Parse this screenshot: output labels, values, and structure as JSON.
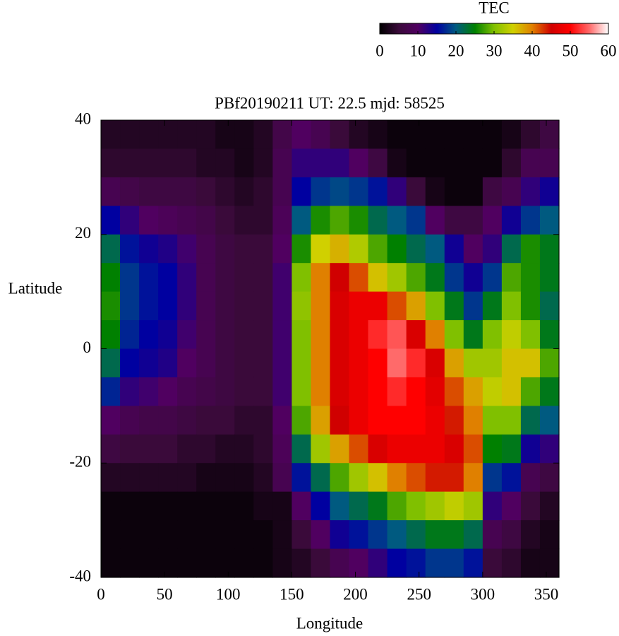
{
  "chart_data": {
    "type": "heatmap",
    "title": "PBf20190211  UT: 22.5  mjd: 58525",
    "xlabel": "Longitude",
    "ylabel": "Latitude",
    "xlim": [
      0,
      360
    ],
    "ylim": [
      -40,
      40
    ],
    "xticks": [
      0,
      50,
      100,
      150,
      200,
      250,
      300,
      350
    ],
    "yticks": [
      -40,
      -20,
      0,
      20,
      40
    ],
    "x": [
      7.5,
      22.5,
      37.5,
      52.5,
      67.5,
      82.5,
      97.5,
      112.5,
      127.5,
      142.5,
      157.5,
      172.5,
      187.5,
      202.5,
      217.5,
      232.5,
      247.5,
      262.5,
      277.5,
      292.5,
      307.5,
      322.5,
      337.5,
      352.5
    ],
    "y": [
      37.5,
      32.5,
      27.5,
      22.5,
      17.5,
      12.5,
      7.5,
      2.5,
      -2.5,
      -7.5,
      -12.5,
      -17.5,
      -22.5,
      -27.5,
      -32.5,
      -37.5
    ],
    "values": [
      [
        3,
        3,
        3,
        3,
        3,
        3,
        2,
        2,
        3,
        7,
        10,
        8,
        5,
        3,
        2,
        1,
        1,
        1,
        1,
        1,
        1,
        2,
        4,
        6
      ],
      [
        4,
        4,
        4,
        4,
        4,
        3,
        3,
        2,
        3,
        8,
        12,
        12,
        12,
        10,
        6,
        2,
        1,
        1,
        1,
        1,
        1,
        4,
        8,
        8
      ],
      [
        8,
        7,
        6,
        6,
        6,
        5,
        4,
        3,
        4,
        8,
        15,
        18,
        19,
        18,
        16,
        12,
        5,
        2,
        1,
        1,
        6,
        8,
        12,
        14
      ],
      [
        15,
        12,
        10,
        9,
        8,
        7,
        5,
        4,
        4,
        9,
        20,
        26,
        28,
        26,
        22,
        20,
        18,
        10,
        6,
        6,
        10,
        14,
        18,
        20
      ],
      [
        22,
        16,
        14,
        13,
        11,
        8,
        6,
        5,
        5,
        10,
        26,
        35,
        37,
        33,
        28,
        25,
        22,
        20,
        14,
        10,
        12,
        22,
        26,
        24
      ],
      [
        25,
        18,
        16,
        15,
        12,
        8,
        6,
        5,
        5,
        11,
        30,
        40,
        45,
        42,
        36,
        32,
        28,
        24,
        18,
        14,
        18,
        28,
        26,
        24
      ],
      [
        26,
        18,
        16,
        15,
        12,
        8,
        6,
        5,
        5,
        11,
        31,
        40,
        46,
        48,
        48,
        42,
        38,
        30,
        24,
        18,
        24,
        30,
        26,
        22
      ],
      [
        25,
        17,
        15,
        14,
        11,
        8,
        6,
        5,
        5,
        11,
        30,
        40,
        46,
        48,
        52,
        54,
        46,
        40,
        30,
        24,
        30,
        34,
        30,
        24
      ],
      [
        22,
        15,
        14,
        13,
        10,
        8,
        6,
        5,
        5,
        11,
        30,
        40,
        46,
        48,
        50,
        55,
        52,
        46,
        38,
        32,
        32,
        36,
        36,
        28
      ],
      [
        17,
        12,
        11,
        10,
        8,
        7,
        6,
        5,
        5,
        11,
        30,
        40,
        46,
        48,
        50,
        52,
        50,
        47,
        42,
        38,
        34,
        36,
        28,
        24
      ],
      [
        10,
        8,
        7,
        7,
        6,
        5,
        5,
        4,
        4,
        10,
        28,
        38,
        45,
        48,
        50,
        50,
        50,
        48,
        44,
        40,
        30,
        30,
        22,
        20
      ],
      [
        6,
        5,
        5,
        5,
        4,
        4,
        3,
        3,
        4,
        9,
        22,
        32,
        38,
        42,
        46,
        48,
        48,
        48,
        46,
        42,
        25,
        24,
        14,
        12
      ],
      [
        3,
        3,
        3,
        3,
        3,
        2,
        2,
        2,
        3,
        8,
        16,
        22,
        28,
        32,
        36,
        40,
        42,
        44,
        44,
        40,
        18,
        16,
        8,
        6
      ],
      [
        1,
        1,
        1,
        1,
        1,
        1,
        1,
        1,
        2,
        2,
        10,
        15,
        20,
        22,
        24,
        28,
        30,
        32,
        34,
        32,
        12,
        10,
        5,
        3
      ],
      [
        1,
        1,
        1,
        1,
        1,
        1,
        1,
        1,
        1,
        2,
        5,
        10,
        14,
        16,
        18,
        20,
        22,
        24,
        24,
        22,
        8,
        6,
        3,
        2
      ],
      [
        1,
        1,
        1,
        1,
        1,
        1,
        1,
        1,
        1,
        2,
        3,
        5,
        8,
        10,
        12,
        15,
        16,
        18,
        18,
        16,
        5,
        4,
        2,
        2
      ]
    ],
    "colormap": [
      "#000000",
      "#3a0a3a",
      "#500060",
      "#0000a0",
      "#005a80",
      "#008000",
      "#80c000",
      "#d0d000",
      "#e08000",
      "#d00000",
      "#ff0000",
      "#ff6a6a",
      "#ffffff"
    ],
    "colorbar": {
      "label": "TEC",
      "lim": [
        0,
        60
      ],
      "ticks": [
        0,
        10,
        20,
        30,
        40,
        50,
        60
      ]
    }
  }
}
